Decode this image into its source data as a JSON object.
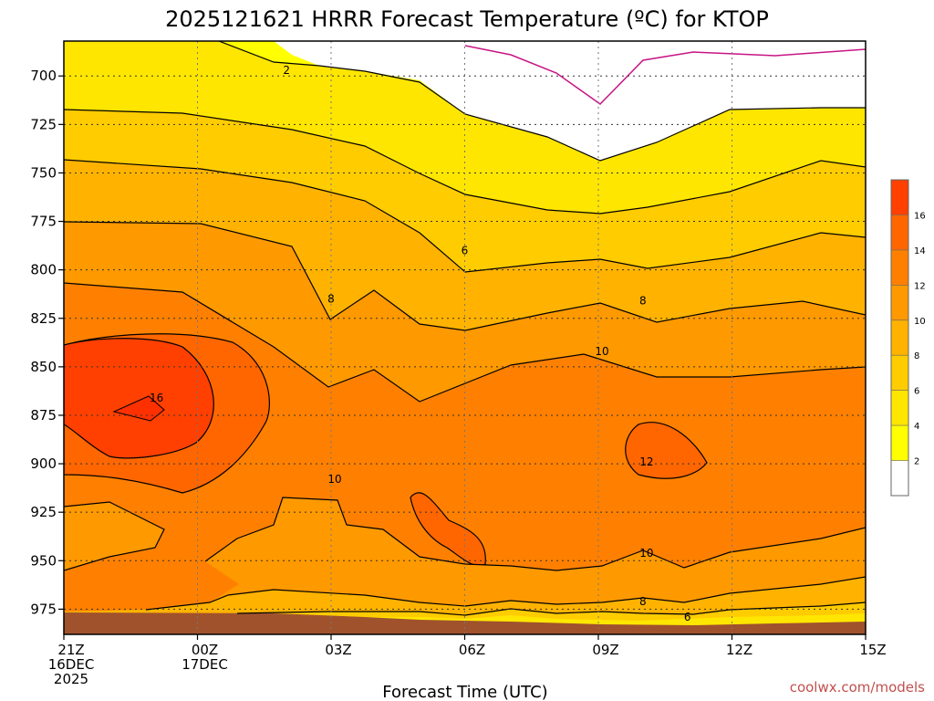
{
  "chart_data": {
    "type": "heatmap",
    "title": "2025121621 HRRR Forecast Temperature (ºC) for KTOP",
    "xlabel": "Forecast Time (UTC)",
    "ylabel": "",
    "credit": "coolwx.com/models",
    "x_ticks": [
      {
        "hour": 0,
        "lines": [
          "21Z",
          "16DEC",
          "2025"
        ]
      },
      {
        "hour": 3,
        "lines": [
          "00Z",
          "17DEC"
        ]
      },
      {
        "hour": 6,
        "lines": [
          "03Z"
        ]
      },
      {
        "hour": 9,
        "lines": [
          "06Z"
        ]
      },
      {
        "hour": 12,
        "lines": [
          "09Z"
        ]
      },
      {
        "hour": 15,
        "lines": [
          "12Z"
        ]
      },
      {
        "hour": 18,
        "lines": [
          "15Z"
        ]
      }
    ],
    "xlim": [
      0,
      18
    ],
    "ylim": [
      988,
      682
    ],
    "y_ticks": [
      700,
      725,
      750,
      775,
      800,
      825,
      850,
      875,
      900,
      925,
      950,
      975
    ],
    "y_unit": "hPa",
    "grid": true,
    "colorbar": {
      "levels": [
        0,
        2,
        4,
        6,
        8,
        10,
        12,
        14,
        16,
        18
      ],
      "labels": [
        "2",
        "4",
        "6",
        "8",
        "10",
        "12",
        "14",
        "16"
      ],
      "colors": [
        "#ffffff",
        "#ffff00",
        "#ffe600",
        "#ffcc00",
        "#ffb300",
        "#ff9900",
        "#ff8000",
        "#ff6600",
        "#ff4000"
      ]
    },
    "ground_color": "#a0522d",
    "zero_line_color": "#c71585",
    "contour_labels": [
      {
        "text": "2",
        "hour": 5.0,
        "p": 697
      },
      {
        "text": "6",
        "hour": 9.0,
        "p": 790
      },
      {
        "text": "8",
        "hour": 6.0,
        "p": 815
      },
      {
        "text": "8",
        "hour": 13.0,
        "p": 816
      },
      {
        "text": "10",
        "hour": 12.0,
        "p": 842
      },
      {
        "text": "16",
        "hour": 2.0,
        "p": 866
      },
      {
        "text": "12",
        "hour": 13.0,
        "p": 899
      },
      {
        "text": "10",
        "hour": 6.0,
        "p": 908
      },
      {
        "text": "10",
        "hour": 13.0,
        "p": 946
      },
      {
        "text": "8",
        "hour": 13.0,
        "p": 971
      },
      {
        "text": "6",
        "hour": 14.0,
        "p": 979
      }
    ]
  }
}
